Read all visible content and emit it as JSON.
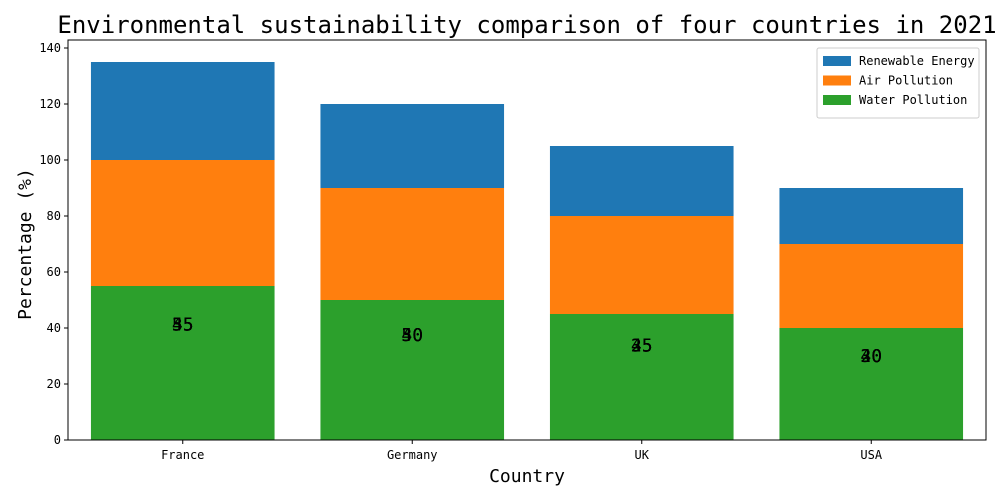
{
  "chart_data": {
    "type": "bar",
    "stacked": true,
    "title": "Environmental sustainability comparison of four countries in 2021",
    "xlabel": "Country",
    "ylabel": "Percentage (%)",
    "ylim": [
      0,
      140
    ],
    "yticks": [
      0,
      20,
      40,
      60,
      80,
      100,
      120,
      140
    ],
    "categories": [
      "France",
      "Germany",
      "UK",
      "USA"
    ],
    "series": [
      {
        "name": "Water Pollution",
        "values": [
          55,
          50,
          45,
          40
        ],
        "color": "#2ca02c"
      },
      {
        "name": "Air Pollution",
        "values": [
          45,
          40,
          35,
          30
        ],
        "color": "#ff7f0e"
      },
      {
        "name": "Renewable Energy",
        "values": [
          35,
          30,
          25,
          20
        ],
        "color": "#1f77b4"
      }
    ],
    "legend_order": [
      "Renewable Energy",
      "Air Pollution",
      "Water Pollution"
    ],
    "legend_position": "top-right",
    "grid": false,
    "data_labels": [
      {
        "category": "France",
        "texts": [
          "35",
          "45",
          "55"
        ]
      },
      {
        "category": "Germany",
        "texts": [
          "30",
          "40",
          "50"
        ]
      },
      {
        "category": "UK",
        "texts": [
          "25",
          "35",
          "45"
        ]
      },
      {
        "category": "USA",
        "texts": [
          "20",
          "30",
          "40"
        ]
      }
    ]
  }
}
